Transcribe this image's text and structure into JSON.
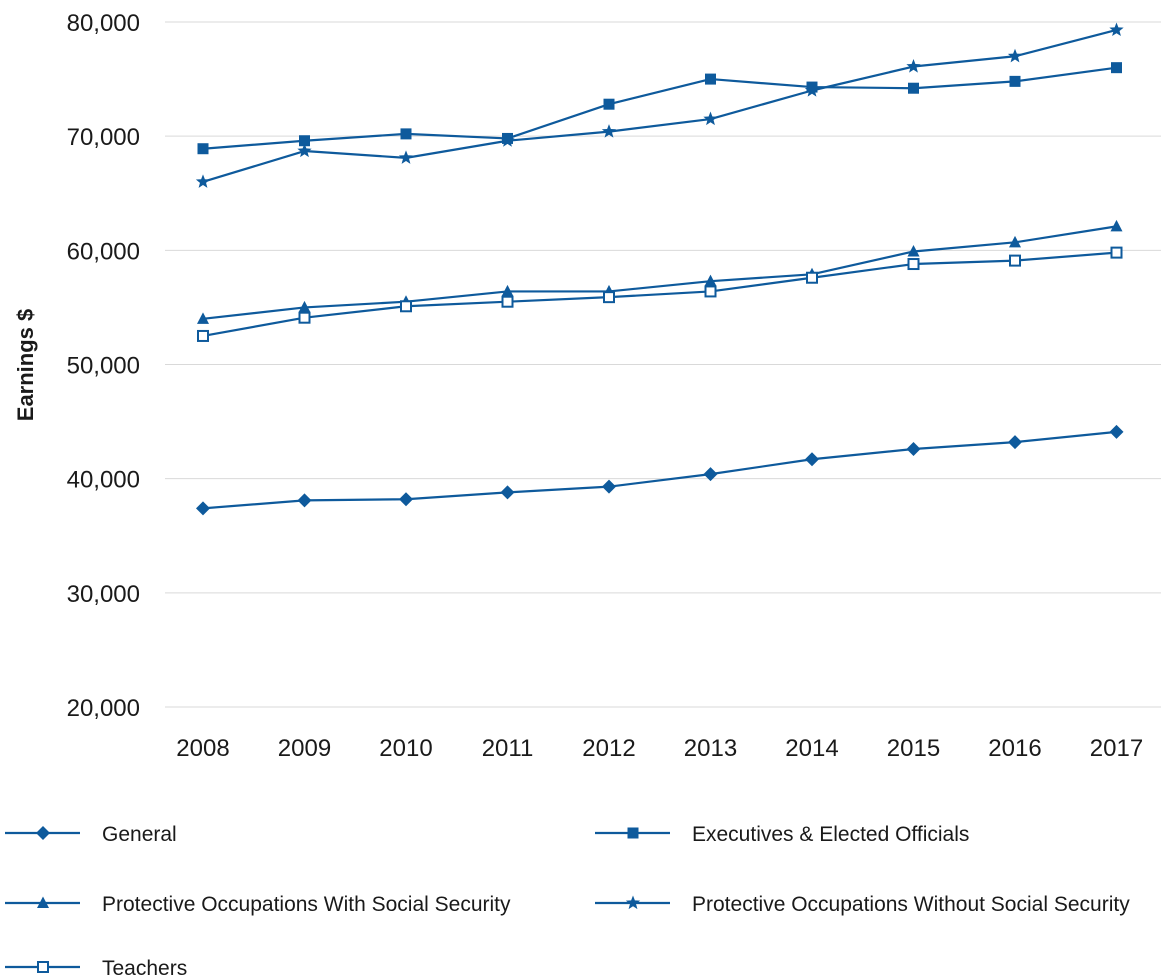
{
  "chart_data": {
    "type": "line",
    "title": "",
    "xlabel": "",
    "ylabel": "Earnings $",
    "x": [
      "2008",
      "2009",
      "2010",
      "2011",
      "2012",
      "2013",
      "2014",
      "2015",
      "2016",
      "2017"
    ],
    "ylim": [
      20000,
      80000
    ],
    "yticks": [
      "20,000",
      "30,000",
      "40,000",
      "50,000",
      "60,000",
      "70,000",
      "80,000"
    ],
    "ytick_values": [
      20000,
      30000,
      40000,
      50000,
      60000,
      70000,
      80000
    ],
    "grid": "horizontal",
    "legend_position": "bottom",
    "color": "#0e5a9c",
    "series": [
      {
        "name": "General",
        "marker": "diamond",
        "values": [
          37400,
          38100,
          38200,
          38800,
          39300,
          40400,
          41700,
          42600,
          43200,
          44100
        ]
      },
      {
        "name": "Executives & Elected Officials",
        "marker": "square",
        "values": [
          68900,
          69600,
          70200,
          69800,
          72800,
          75000,
          74300,
          74200,
          74800,
          76000
        ]
      },
      {
        "name": "Protective Occupations With Social Security",
        "marker": "triangle",
        "values": [
          54000,
          55000,
          55500,
          56400,
          56400,
          57300,
          57900,
          59900,
          60700,
          62100
        ]
      },
      {
        "name": "Protective Occupations Without Social Security",
        "marker": "star",
        "values": [
          66000,
          68700,
          68100,
          69600,
          70400,
          71500,
          74000,
          76100,
          77000,
          79300
        ]
      },
      {
        "name": "Teachers",
        "marker": "open-square",
        "values": [
          52500,
          54100,
          55100,
          55500,
          55900,
          56400,
          57600,
          58800,
          59100,
          59800
        ]
      }
    ]
  }
}
